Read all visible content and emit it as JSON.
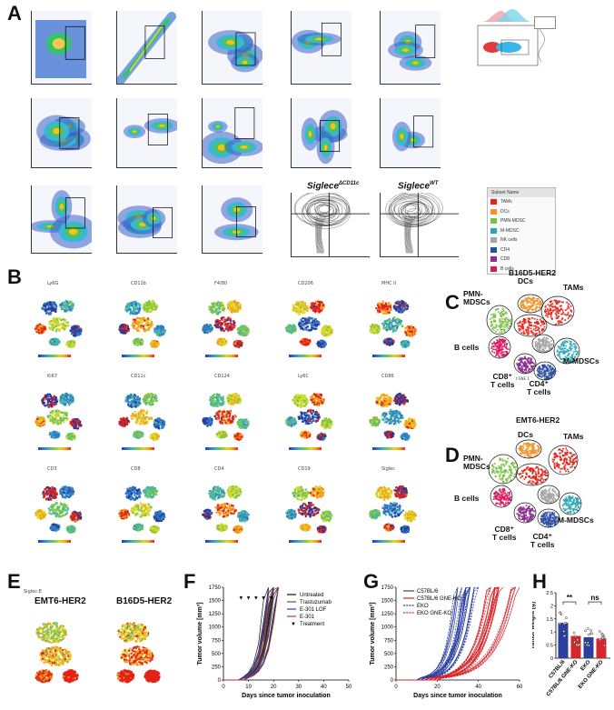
{
  "panel_letters": {
    "a": "A",
    "b": "B",
    "c": "C",
    "d": "D",
    "e": "E",
    "f": "F",
    "g": "G",
    "h": "H"
  },
  "panelA": {
    "siglec_titles": {
      "cd11c": "Siglece",
      "cd11c_sup": "ΔCD11c",
      "wt": "Siglece",
      "wt_sup": "WT"
    }
  },
  "legend": {
    "title": "Subset Name",
    "items": [
      {
        "label": "TAMs",
        "color": "#e2231a"
      },
      {
        "label": "DCs",
        "color": "#f0932b"
      },
      {
        "label": "PMN-MDSC",
        "color": "#7bc043"
      },
      {
        "label": "M-MDSC",
        "color": "#2aa7b5"
      },
      {
        "label": "NK cells",
        "color": "#a5a5a5"
      },
      {
        "label": "CD4",
        "color": "#2b4ea2"
      },
      {
        "label": "CD8",
        "color": "#8c2f8f"
      },
      {
        "label": "B cells",
        "color": "#d81b60"
      }
    ]
  },
  "panelB": {
    "markers": [
      "Ly6G",
      "CD11b",
      "F4/80",
      "CD206",
      "MHC II",
      "Ki67",
      "CD11c",
      "CD124",
      "Ly6C",
      "CD86",
      "CD3",
      "CD8",
      "CD4",
      "CD19",
      "Siglec"
    ]
  },
  "panelC": {
    "title": "B16D5-HER2",
    "labels": {
      "pmn": "PMN-\nMDSCs",
      "dcs": "DCs",
      "tams": "TAMs",
      "bcells": "B cells",
      "cd8": "CD8⁺\nT cells",
      "cd4": "CD4⁺\nT cells",
      "mmdsc": "M-MDSCs",
      "tsne1": "t-SNE 1",
      "tsne2": "t-SNE 2"
    }
  },
  "panelD": {
    "title": "EMT6-HER2",
    "labels": {
      "pmn": "PMN-\nMDSCs",
      "dcs": "DCs",
      "tams": "TAMs",
      "bcells": "B cells",
      "cd8": "CD8⁺\nT cells",
      "cd4": "CD4⁺\nT cells",
      "mmdsc": "M-MDSCs",
      "tsne1": "t-SNE 1",
      "tsne2": "t-SNE 2"
    }
  },
  "panelE": {
    "left_title": "EMT6-HER2",
    "right_title": "B16D5-HER2",
    "tag": "Siglec-E"
  },
  "colors": {
    "blue": "#2b3fa0",
    "red": "#d7262b",
    "purple": "#7a2c8c",
    "gray": "#8a8a8a"
  },
  "chart_data": [
    {
      "id": "F",
      "type": "line",
      "xlabel": "Days since tumor inoculation",
      "ylabel": "Tumor volume [mm³]",
      "xlim": [
        0,
        50
      ],
      "ylim": [
        0,
        1750
      ],
      "xticks": [
        0,
        10,
        20,
        30,
        40,
        50
      ],
      "yticks": [
        0,
        250,
        500,
        750,
        1000,
        1250,
        1500,
        1750
      ],
      "treatment_days": [
        7,
        10,
        13,
        16,
        19
      ],
      "series": [
        {
          "name": "Untreated",
          "color": "#111111"
        },
        {
          "name": "Trastuzumab",
          "color": "#555555"
        },
        {
          "name": "E-301 LOF",
          "color": "#2b3fa0"
        },
        {
          "name": "E-301",
          "color": "#c0392b"
        },
        {
          "name": "Treatment",
          "marker": "▼"
        }
      ]
    },
    {
      "id": "G",
      "type": "line",
      "xlabel": "Days since tumor inoculation",
      "ylabel": "Tumor volume [mm³]",
      "xlim": [
        0,
        60
      ],
      "ylim": [
        0,
        1750
      ],
      "xticks": [
        0,
        20,
        40,
        60
      ],
      "yticks": [
        0,
        250,
        500,
        750,
        1000,
        1250,
        1500,
        1750
      ],
      "series": [
        {
          "name": "C57BL/6",
          "color": "#2b3fa0",
          "dash": false
        },
        {
          "name": "C57BL/6 GNE-KO",
          "color": "#d7262b",
          "dash": false
        },
        {
          "name": "EKO",
          "color": "#2b3fa0",
          "dash": true
        },
        {
          "name": "EKO GNE-KO",
          "color": "#d7262b",
          "dash": true
        }
      ]
    },
    {
      "id": "H",
      "type": "bar",
      "ylabel": "Tumor weight [g]",
      "ylim": [
        0,
        2.5
      ],
      "yticks": [
        0,
        0.5,
        1,
        1.5,
        2,
        2.5
      ],
      "categories": [
        "C57BL/6",
        "C57BL/6 GNE-KO",
        "EKO",
        "EKO GNE-KO"
      ],
      "values": [
        1.35,
        0.85,
        0.8,
        0.75
      ],
      "bar_colors": [
        "#2b3fa0",
        "#d7262b",
        "#2b3fa0",
        "#d7262b"
      ],
      "significance": [
        {
          "pair": [
            0,
            1
          ],
          "label": "**"
        },
        {
          "pair": [
            2,
            3
          ],
          "label": "ns"
        }
      ]
    }
  ]
}
